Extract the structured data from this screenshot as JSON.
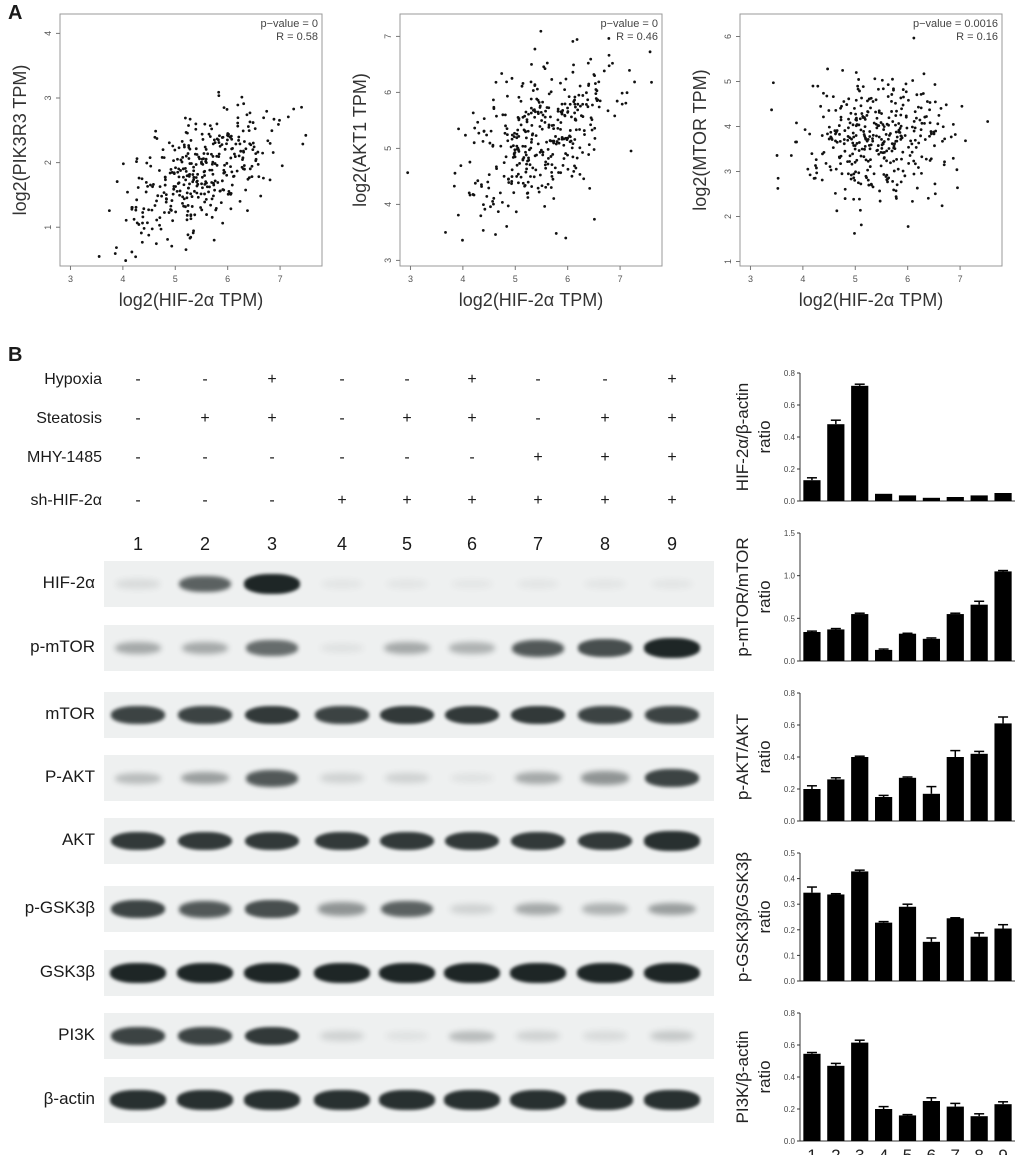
{
  "panel_a": {
    "letter": "A",
    "xlabel": "log2(HIF-2α TPM)",
    "plots": [
      {
        "ylabel": "log2(PIK3R3 TPM)",
        "pvalue": "p−value = 0",
        "r": "R = 0.58",
        "xticks": [
          "3",
          "4",
          "5",
          "6",
          "7"
        ],
        "yticks": [
          "1",
          "2",
          "3",
          "4"
        ],
        "xlim": [
          2.8,
          7.8
        ],
        "ylim": [
          0.4,
          4.3
        ],
        "R": 0.58,
        "ymean": 1.8,
        "ysd": 0.55
      },
      {
        "ylabel": "log2(AKT1 TPM)",
        "pvalue": "p−value = 0",
        "r": "R = 0.46",
        "xticks": [
          "3",
          "4",
          "5",
          "6",
          "7"
        ],
        "yticks": [
          "3",
          "4",
          "5",
          "6",
          "7"
        ],
        "xlim": [
          2.8,
          7.8
        ],
        "ylim": [
          2.9,
          7.4
        ],
        "R": 0.46,
        "ymean": 5.25,
        "ysd": 0.7
      },
      {
        "ylabel": "log2(MTOR TPM)",
        "pvalue": "p−value = 0.0016",
        "r": "R = 0.16",
        "xticks": [
          "3",
          "4",
          "5",
          "6",
          "7"
        ],
        "yticks": [
          "1",
          "2",
          "3",
          "4",
          "5",
          "6"
        ],
        "xlim": [
          2.8,
          7.8
        ],
        "ylim": [
          0.9,
          6.5
        ],
        "R": 0.16,
        "ymean": 3.7,
        "ysd": 0.7
      }
    ]
  },
  "panel_b": {
    "letter": "B",
    "conditions": [
      {
        "label": "Hypoxia",
        "marks": [
          "-",
          "-",
          "+",
          "-",
          "-",
          "+",
          "-",
          "-",
          "+"
        ]
      },
      {
        "label": "Steatosis",
        "marks": [
          "-",
          "+",
          "+",
          "-",
          "+",
          "+",
          "-",
          "+",
          "+"
        ]
      },
      {
        "label": "MHY-1485",
        "marks": [
          "-",
          "-",
          "-",
          "-",
          "-",
          "-",
          "+",
          "+",
          "+"
        ]
      },
      {
        "label": "sh-HIF-2α",
        "marks": [
          "-",
          "-",
          "-",
          "+",
          "+",
          "+",
          "+",
          "+",
          "+"
        ]
      }
    ],
    "lanes": [
      "1",
      "2",
      "3",
      "4",
      "5",
      "6",
      "7",
      "8",
      "9"
    ],
    "blots": [
      {
        "label": "HIF-2α",
        "intensity": [
          0.1,
          0.7,
          1.0,
          0.06,
          0.06,
          0.03,
          0.06,
          0.06,
          0.06
        ]
      },
      {
        "label": "p-mTOR",
        "intensity": [
          0.35,
          0.35,
          0.65,
          0.08,
          0.35,
          0.3,
          0.75,
          0.8,
          1.0
        ]
      },
      {
        "label": "mTOR",
        "intensity": [
          0.85,
          0.85,
          0.9,
          0.85,
          0.9,
          0.9,
          0.9,
          0.85,
          0.85
        ]
      },
      {
        "label": "P-AKT",
        "intensity": [
          0.25,
          0.4,
          0.75,
          0.15,
          0.15,
          0.08,
          0.35,
          0.45,
          0.85
        ]
      },
      {
        "label": "AKT",
        "intensity": [
          0.9,
          0.9,
          0.9,
          0.9,
          0.9,
          0.9,
          0.9,
          0.9,
          0.95
        ]
      },
      {
        "label": "p-GSK3β",
        "intensity": [
          0.85,
          0.75,
          0.8,
          0.45,
          0.7,
          0.15,
          0.35,
          0.3,
          0.4
        ]
      },
      {
        "label": "GSK3β",
        "intensity": [
          1,
          1,
          1,
          1,
          1,
          1,
          1,
          1,
          1
        ]
      },
      {
        "label": "PI3K",
        "intensity": [
          0.85,
          0.85,
          0.9,
          0.15,
          0.08,
          0.25,
          0.15,
          0.1,
          0.2
        ]
      },
      {
        "label": "β-actin",
        "intensity": [
          0.95,
          0.95,
          0.95,
          0.95,
          0.95,
          0.95,
          0.95,
          0.95,
          0.95
        ]
      }
    ]
  },
  "chart_data": [
    {
      "type": "bar",
      "title": "",
      "ylabel": "HIF-2α/β-actin ratio",
      "categories": [
        "1",
        "2",
        "3",
        "4",
        "5",
        "6",
        "7",
        "8",
        "9"
      ],
      "values": [
        0.13,
        0.48,
        0.72,
        0.045,
        0.035,
        0.02,
        0.025,
        0.035,
        0.05
      ],
      "errors": [
        0.015,
        0.025,
        0.01,
        0,
        0,
        0,
        0,
        0,
        0
      ],
      "ylim": [
        0,
        0.8
      ],
      "yticks": [
        "0.0",
        "0.2",
        "0.4",
        "0.6",
        "0.8"
      ]
    },
    {
      "type": "bar",
      "title": "",
      "ylabel": "p-mTOR/mTOR ratio",
      "categories": [
        "1",
        "2",
        "3",
        "4",
        "5",
        "6",
        "7",
        "8",
        "9"
      ],
      "values": [
        0.34,
        0.37,
        0.55,
        0.13,
        0.32,
        0.26,
        0.55,
        0.66,
        1.05
      ],
      "errors": [
        0.01,
        0.01,
        0.01,
        0.01,
        0.005,
        0.01,
        0.01,
        0.04,
        0.01
      ],
      "ylim": [
        0,
        1.5
      ],
      "yticks": [
        "0.0",
        "0.5",
        "1.0",
        "1.5"
      ]
    },
    {
      "type": "bar",
      "title": "",
      "ylabel": "p-AKT/AKT ratio",
      "categories": [
        "1",
        "2",
        "3",
        "4",
        "5",
        "6",
        "7",
        "8",
        "9"
      ],
      "values": [
        0.2,
        0.26,
        0.4,
        0.15,
        0.27,
        0.17,
        0.4,
        0.42,
        0.61
      ],
      "errors": [
        0.02,
        0.01,
        0.005,
        0.01,
        0.005,
        0.045,
        0.04,
        0.015,
        0.04
      ],
      "ylim": [
        0,
        0.8
      ],
      "yticks": [
        "0.0",
        "0.2",
        "0.4",
        "0.6",
        "0.8"
      ]
    },
    {
      "type": "bar",
      "title": "",
      "ylabel": "p-GSK3β/GSK3β ratio",
      "categories": [
        "1",
        "2",
        "3",
        "4",
        "5",
        "6",
        "7",
        "8",
        "9"
      ],
      "values": [
        0.345,
        0.338,
        0.428,
        0.228,
        0.29,
        0.153,
        0.245,
        0.173,
        0.205
      ],
      "errors": [
        0.022,
        0.003,
        0.005,
        0.004,
        0.01,
        0.015,
        0.002,
        0.015,
        0.015
      ],
      "ylim": [
        0,
        0.5
      ],
      "yticks": [
        "0.0",
        "0.1",
        "0.2",
        "0.3",
        "0.4",
        "0.5"
      ]
    },
    {
      "type": "bar",
      "title": "",
      "ylabel": "PI3K/β-actin ratio",
      "categories": [
        "1",
        "2",
        "3",
        "4",
        "5",
        "6",
        "7",
        "8",
        "9"
      ],
      "values": [
        0.545,
        0.47,
        0.615,
        0.2,
        0.16,
        0.25,
        0.215,
        0.155,
        0.23
      ],
      "errors": [
        0.008,
        0.015,
        0.015,
        0.015,
        0.005,
        0.02,
        0.02,
        0.015,
        0.015
      ],
      "ylim": [
        0,
        0.8
      ],
      "yticks": [
        "0.0",
        "0.2",
        "0.4",
        "0.6",
        "0.8"
      ]
    }
  ]
}
